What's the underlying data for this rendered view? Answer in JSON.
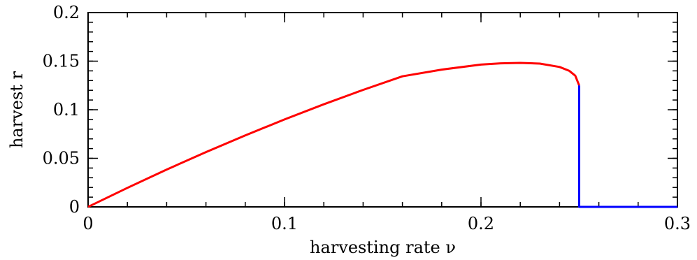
{
  "chart_data": {
    "type": "line",
    "title": "",
    "xlabel": "harvesting rate ν",
    "ylabel": "harvest r",
    "xlim": [
      0,
      0.3
    ],
    "ylim": [
      0,
      0.2
    ],
    "x_ticks": [
      {
        "value": 0,
        "label": "0"
      },
      {
        "value": 0.1,
        "label": "0.1"
      },
      {
        "value": 0.2,
        "label": "0.2"
      },
      {
        "value": 0.3,
        "label": "0.3"
      }
    ],
    "y_ticks": [
      {
        "value": 0,
        "label": "0"
      },
      {
        "value": 0.05,
        "label": "0.05"
      },
      {
        "value": 0.1,
        "label": "0.1"
      },
      {
        "value": 0.15,
        "label": "0.15"
      },
      {
        "value": 0.2,
        "label": "0.2"
      }
    ],
    "x_minor_step": 0.02,
    "y_minor_step": 0.01,
    "grid": false,
    "legend": "none",
    "series": [
      {
        "color": "#ff0000",
        "x": [
          0,
          0.02,
          0.04,
          0.06,
          0.08,
          0.1,
          0.12,
          0.14,
          0.16,
          0.18,
          0.2,
          0.21,
          0.22,
          0.23,
          0.24,
          0.245,
          0.248,
          0.25
        ],
        "y": [
          0,
          0.0196,
          0.0384,
          0.0564,
          0.0736,
          0.09,
          0.1056,
          0.1204,
          0.1344,
          0.1413,
          0.1465,
          0.1478,
          0.1482,
          0.1475,
          0.144,
          0.14,
          0.135,
          0.125
        ]
      },
      {
        "color": "#0000ff",
        "x": [
          0.25,
          0.25,
          0.3
        ],
        "y": [
          0.125,
          0,
          0
        ]
      }
    ]
  }
}
